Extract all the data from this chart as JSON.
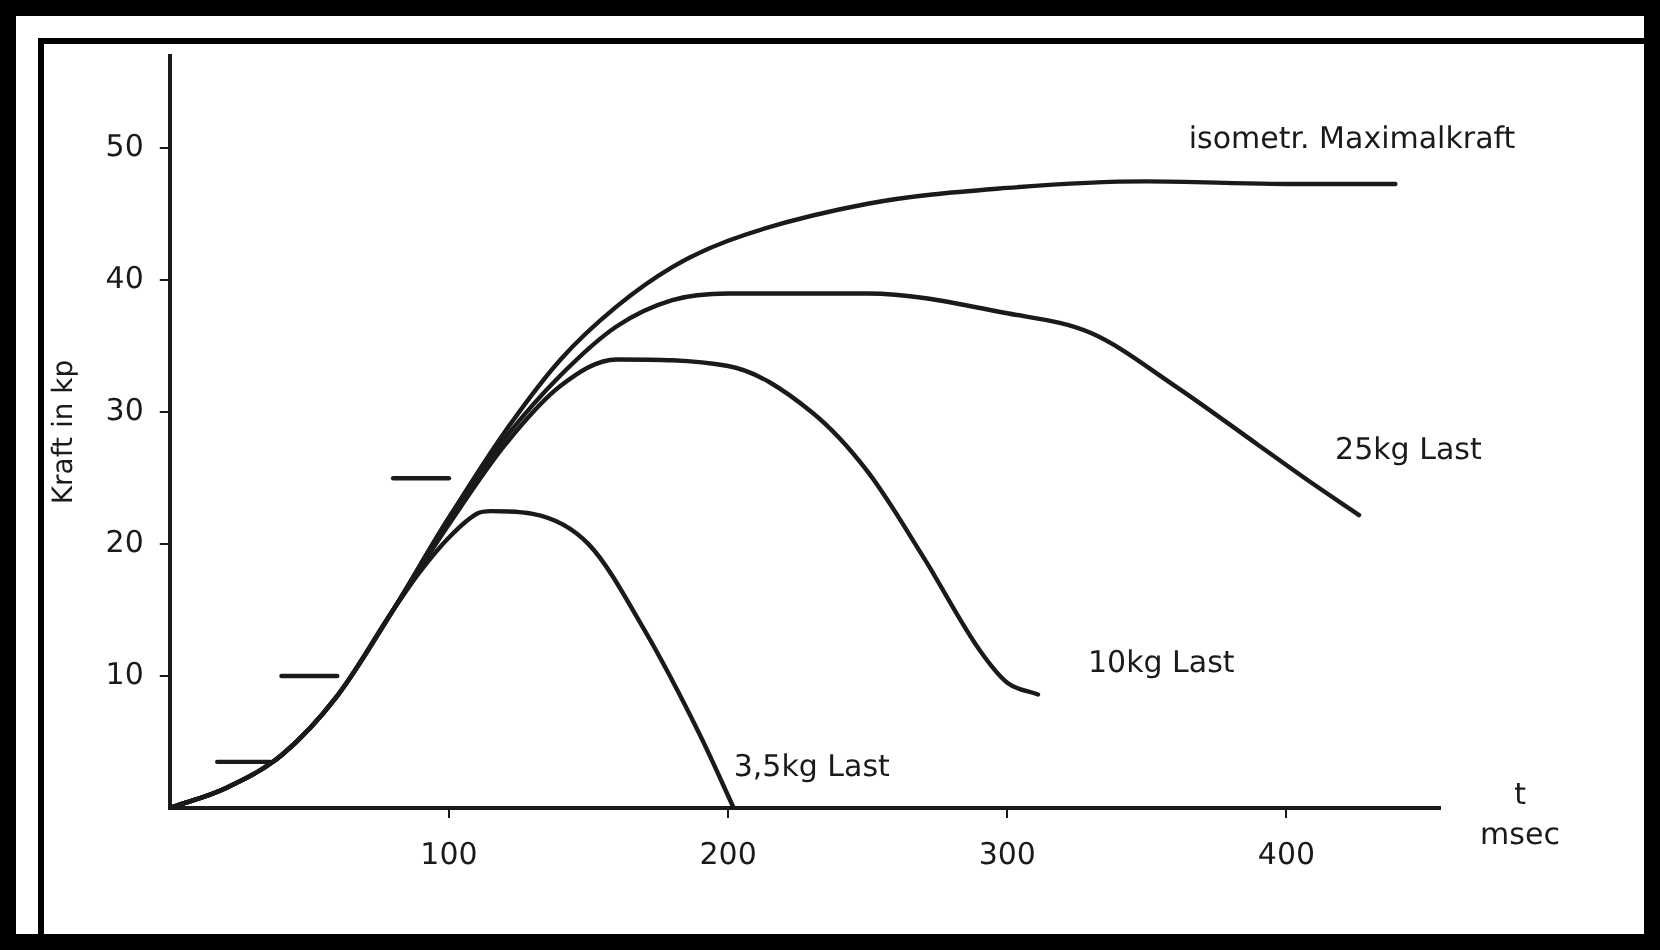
{
  "chart_data": {
    "type": "line",
    "xlabel": "t\nmsec",
    "ylabel": "Kraft in kp",
    "xlim": [
      0,
      455
    ],
    "ylim": [
      0,
      57
    ],
    "xticks": [
      100,
      200,
      300,
      400
    ],
    "yticks": [
      10,
      20,
      30,
      40,
      50
    ],
    "grid": false,
    "legend": false,
    "marker": "none",
    "line_style": "solid",
    "series": [
      {
        "name": "isometr. Maximalkraft",
        "color": "#1a1a1a",
        "x": [
          0,
          20,
          40,
          60,
          80,
          100,
          120,
          140,
          160,
          180,
          200,
          250,
          300,
          350,
          400,
          439
        ],
        "values": [
          0,
          1.5,
          4,
          8.5,
          15,
          22,
          28.5,
          34,
          38,
          41,
          43,
          45.8,
          47,
          47.5,
          47.3,
          47.3
        ]
      },
      {
        "name": "25kg Last",
        "color": "#1a1a1a",
        "x": [
          0,
          20,
          40,
          60,
          80,
          100,
          120,
          140,
          160,
          180,
          200,
          250,
          300,
          330,
          360,
          390,
          410,
          426
        ],
        "values": [
          0,
          1.5,
          4,
          8.5,
          15,
          22,
          28,
          32.8,
          36.5,
          38.5,
          39,
          39,
          37.5,
          36,
          32,
          27.5,
          24.5,
          22.2
        ]
      },
      {
        "name": "10kg Last",
        "color": "#1a1a1a",
        "x": [
          0,
          20,
          40,
          60,
          80,
          100,
          120,
          140,
          160,
          200,
          230,
          250,
          270,
          290,
          300,
          311
        ],
        "values": [
          0,
          1.5,
          4,
          8.5,
          15,
          21.5,
          27.5,
          32,
          34,
          33.5,
          30,
          25.5,
          19,
          12,
          9.5,
          8.6
        ]
      },
      {
        "name": "3,5kg Last",
        "color": "#1a1a1a",
        "x": [
          0,
          20,
          40,
          60,
          80,
          90,
          100,
          110,
          115,
          130,
          150,
          170,
          190,
          202
        ],
        "values": [
          0,
          1.5,
          4,
          8.5,
          15,
          18,
          20.5,
          22.3,
          22.5,
          22.3,
          20,
          13.5,
          5.5,
          0
        ]
      },
      {
        "color": "#1a1a1a",
        "x": [
          17,
          36
        ],
        "values": [
          3.5,
          3.5
        ]
      },
      {
        "color": "#1a1a1a",
        "x": [
          40,
          60
        ],
        "values": [
          10,
          10
        ]
      },
      {
        "color": "#1a1a1a",
        "x": [
          80,
          100
        ],
        "values": [
          25,
          25
        ]
      }
    ]
  }
}
